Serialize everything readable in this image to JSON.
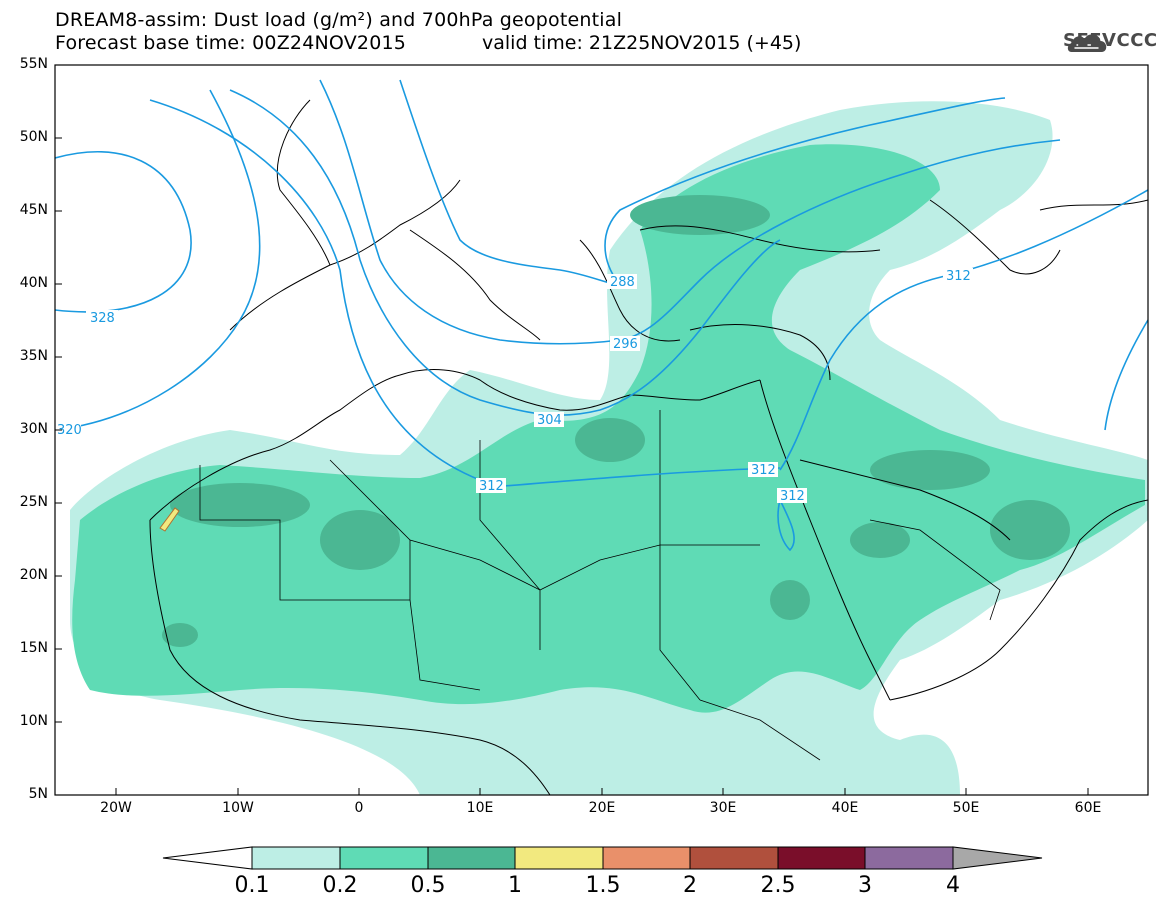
{
  "header": {
    "title_line1": "DREAM8-assim: Dust load (g/m²) and 700hPa geopotential",
    "title_line2": "Forecast base time: 00Z24NOV2015",
    "valid_time": "valid time: 21Z25NOV2015 (+45)",
    "logo_text": "SEEVCCC"
  },
  "axes": {
    "lat_labels": [
      "55N",
      "50N",
      "45N",
      "40N",
      "35N",
      "30N",
      "25N",
      "20N",
      "15N",
      "10N",
      "5N"
    ],
    "lon_labels": [
      "20W",
      "10W",
      "0",
      "10E",
      "20E",
      "30E",
      "40E",
      "50E",
      "60E"
    ]
  },
  "contour_labels": [
    "328",
    "320",
    "288",
    "296",
    "304",
    "312",
    "312",
    "312",
    "312"
  ],
  "legend": {
    "labels": [
      "0.1",
      "0.2",
      "0.5",
      "1",
      "1.5",
      "2",
      "2.5",
      "3",
      "4"
    ],
    "colors": [
      "#ffffff",
      "#bdeee5",
      "#5fdbb5",
      "#4bb793",
      "#f2e97f",
      "#e9906a",
      "#b0503d",
      "#7a0e2a",
      "#8c6a9e",
      "#a8a8a8"
    ]
  },
  "colors": {
    "dust_low": "#bdeee5",
    "dust_mid": "#5fdbb5",
    "dust_high": "#4bb793",
    "dust_yellow": "#f2e97f",
    "contour": "#1a9ae0"
  }
}
